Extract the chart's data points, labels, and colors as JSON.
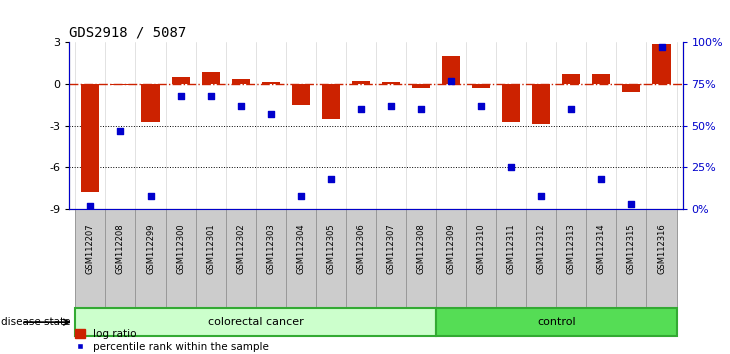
{
  "title": "GDS2918 / 5087",
  "samples": [
    "GSM112207",
    "GSM112208",
    "GSM112299",
    "GSM112300",
    "GSM112301",
    "GSM112302",
    "GSM112303",
    "GSM112304",
    "GSM112305",
    "GSM112306",
    "GSM112307",
    "GSM112308",
    "GSM112309",
    "GSM112310",
    "GSM112311",
    "GSM112312",
    "GSM112313",
    "GSM112314",
    "GSM112315",
    "GSM112316"
  ],
  "log_ratio": [
    -7.8,
    -0.05,
    -2.75,
    0.5,
    0.85,
    0.4,
    0.12,
    -1.5,
    -2.5,
    0.2,
    0.15,
    -0.25,
    2.0,
    -0.28,
    -2.7,
    -2.85,
    0.75,
    0.72,
    -0.55,
    2.9
  ],
  "percentile_rank": [
    2,
    47,
    8,
    68,
    68,
    62,
    57,
    8,
    18,
    60,
    62,
    60,
    77,
    62,
    25,
    8,
    60,
    18,
    3,
    97
  ],
  "colorectal_count": 12,
  "control_count": 8,
  "ylim_left": [
    -9,
    3
  ],
  "ylim_right": [
    0,
    100
  ],
  "bar_color": "#CC2200",
  "dot_color": "#0000CC",
  "colorectal_color": "#CCFFCC",
  "control_color": "#55DD55",
  "label_box_color": "#CCCCCC",
  "zero_line_color": "#CC2200",
  "grid_line_color": "#000000",
  "background_color": "#FFFFFF",
  "left_yticks": [
    3,
    0,
    -3,
    -6,
    -9
  ],
  "right_yticks": [
    100,
    75,
    50,
    25,
    0
  ],
  "right_yticklabels": [
    "100%",
    "75%",
    "50%",
    "25%",
    "0%"
  ]
}
